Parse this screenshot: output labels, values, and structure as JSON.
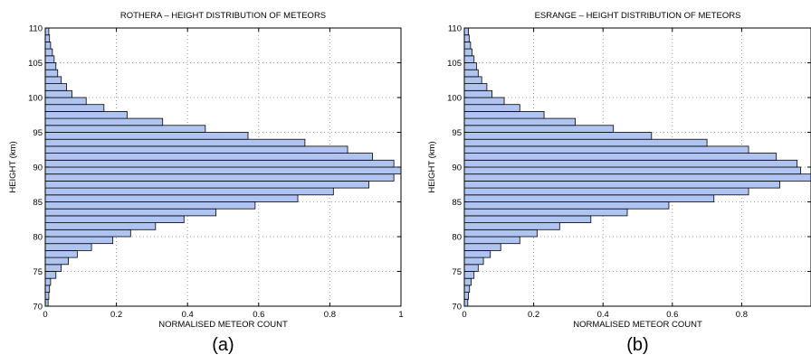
{
  "chart_data": [
    {
      "type": "bar",
      "orientation": "horizontal",
      "title": "ROTHERA – HEIGHT DISTRIBUTION OF METEORS",
      "xlabel": "NORMALISED METEOR COUNT",
      "ylabel": "HEIGHT (km)",
      "panel_label": "(a)",
      "xlim": [
        0,
        1
      ],
      "ylim": [
        70,
        110
      ],
      "x_ticks": [
        0,
        0.2,
        0.4,
        0.6,
        0.8,
        1
      ],
      "x_tick_labels": [
        "0",
        "0.2",
        "0.4",
        "0.6",
        "0.8",
        "1"
      ],
      "y_ticks": [
        70,
        75,
        80,
        85,
        90,
        95,
        100,
        105,
        110
      ],
      "y_tick_labels": [
        "70",
        "75",
        "80",
        "85",
        "90",
        "95",
        "100",
        "105",
        "110"
      ],
      "grid": true,
      "bar_color": "#b0c4f2",
      "heights_km": [
        70.5,
        71.5,
        72.5,
        73.5,
        74.5,
        75.5,
        76.5,
        77.5,
        78.5,
        79.5,
        80.5,
        81.5,
        82.5,
        83.5,
        84.5,
        85.5,
        86.5,
        87.5,
        88.5,
        89.5,
        90.5,
        91.5,
        92.5,
        93.5,
        94.5,
        95.5,
        96.5,
        97.5,
        98.5,
        99.5,
        100.5,
        101.5,
        102.5,
        103.5,
        104.5,
        105.5,
        106.5,
        107.5,
        108.5,
        109.5
      ],
      "values": [
        0.008,
        0.01,
        0.012,
        0.015,
        0.03,
        0.045,
        0.065,
        0.09,
        0.13,
        0.19,
        0.24,
        0.31,
        0.39,
        0.48,
        0.59,
        0.71,
        0.81,
        0.91,
        0.98,
        1.0,
        0.98,
        0.92,
        0.85,
        0.73,
        0.57,
        0.45,
        0.33,
        0.23,
        0.165,
        0.115,
        0.075,
        0.06,
        0.045,
        0.035,
        0.03,
        0.025,
        0.02,
        0.015,
        0.012,
        0.01
      ]
    },
    {
      "type": "bar",
      "orientation": "horizontal",
      "title": "ESRANGE – HEIGHT DISTRIBUTION OF METEORS",
      "xlabel": "NORMALISED METEOR COUNT",
      "ylabel": "HEIGHT (km)",
      "panel_label": "(b)",
      "xlim": [
        0,
        1
      ],
      "ylim": [
        70,
        110
      ],
      "x_ticks": [
        0,
        0.2,
        0.4,
        0.6,
        0.8
      ],
      "x_tick_labels": [
        "0",
        "0.2",
        "0.4",
        "0.6",
        "0.8"
      ],
      "y_ticks": [
        70,
        75,
        80,
        85,
        90,
        95,
        100,
        105,
        110
      ],
      "y_tick_labels": [
        "70",
        "75",
        "80",
        "85",
        "90",
        "95",
        "100",
        "105",
        "110"
      ],
      "grid": true,
      "bar_color": "#b0c4f2",
      "heights_km": [
        70.5,
        71.5,
        72.5,
        73.5,
        74.5,
        75.5,
        76.5,
        77.5,
        78.5,
        79.5,
        80.5,
        81.5,
        82.5,
        83.5,
        84.5,
        85.5,
        86.5,
        87.5,
        88.5,
        89.5,
        90.5,
        91.5,
        92.5,
        93.5,
        94.5,
        95.5,
        96.5,
        97.5,
        98.5,
        99.5,
        100.5,
        101.5,
        102.5,
        103.5,
        104.5,
        105.5,
        106.5,
        107.5,
        108.5,
        109.5
      ],
      "values": [
        0.01,
        0.012,
        0.015,
        0.02,
        0.028,
        0.04,
        0.055,
        0.075,
        0.105,
        0.16,
        0.21,
        0.275,
        0.365,
        0.47,
        0.59,
        0.72,
        0.82,
        0.91,
        1.0,
        0.97,
        0.96,
        0.9,
        0.82,
        0.7,
        0.54,
        0.43,
        0.32,
        0.23,
        0.16,
        0.115,
        0.08,
        0.065,
        0.05,
        0.04,
        0.035,
        0.028,
        0.022,
        0.018,
        0.014,
        0.012
      ]
    }
  ]
}
